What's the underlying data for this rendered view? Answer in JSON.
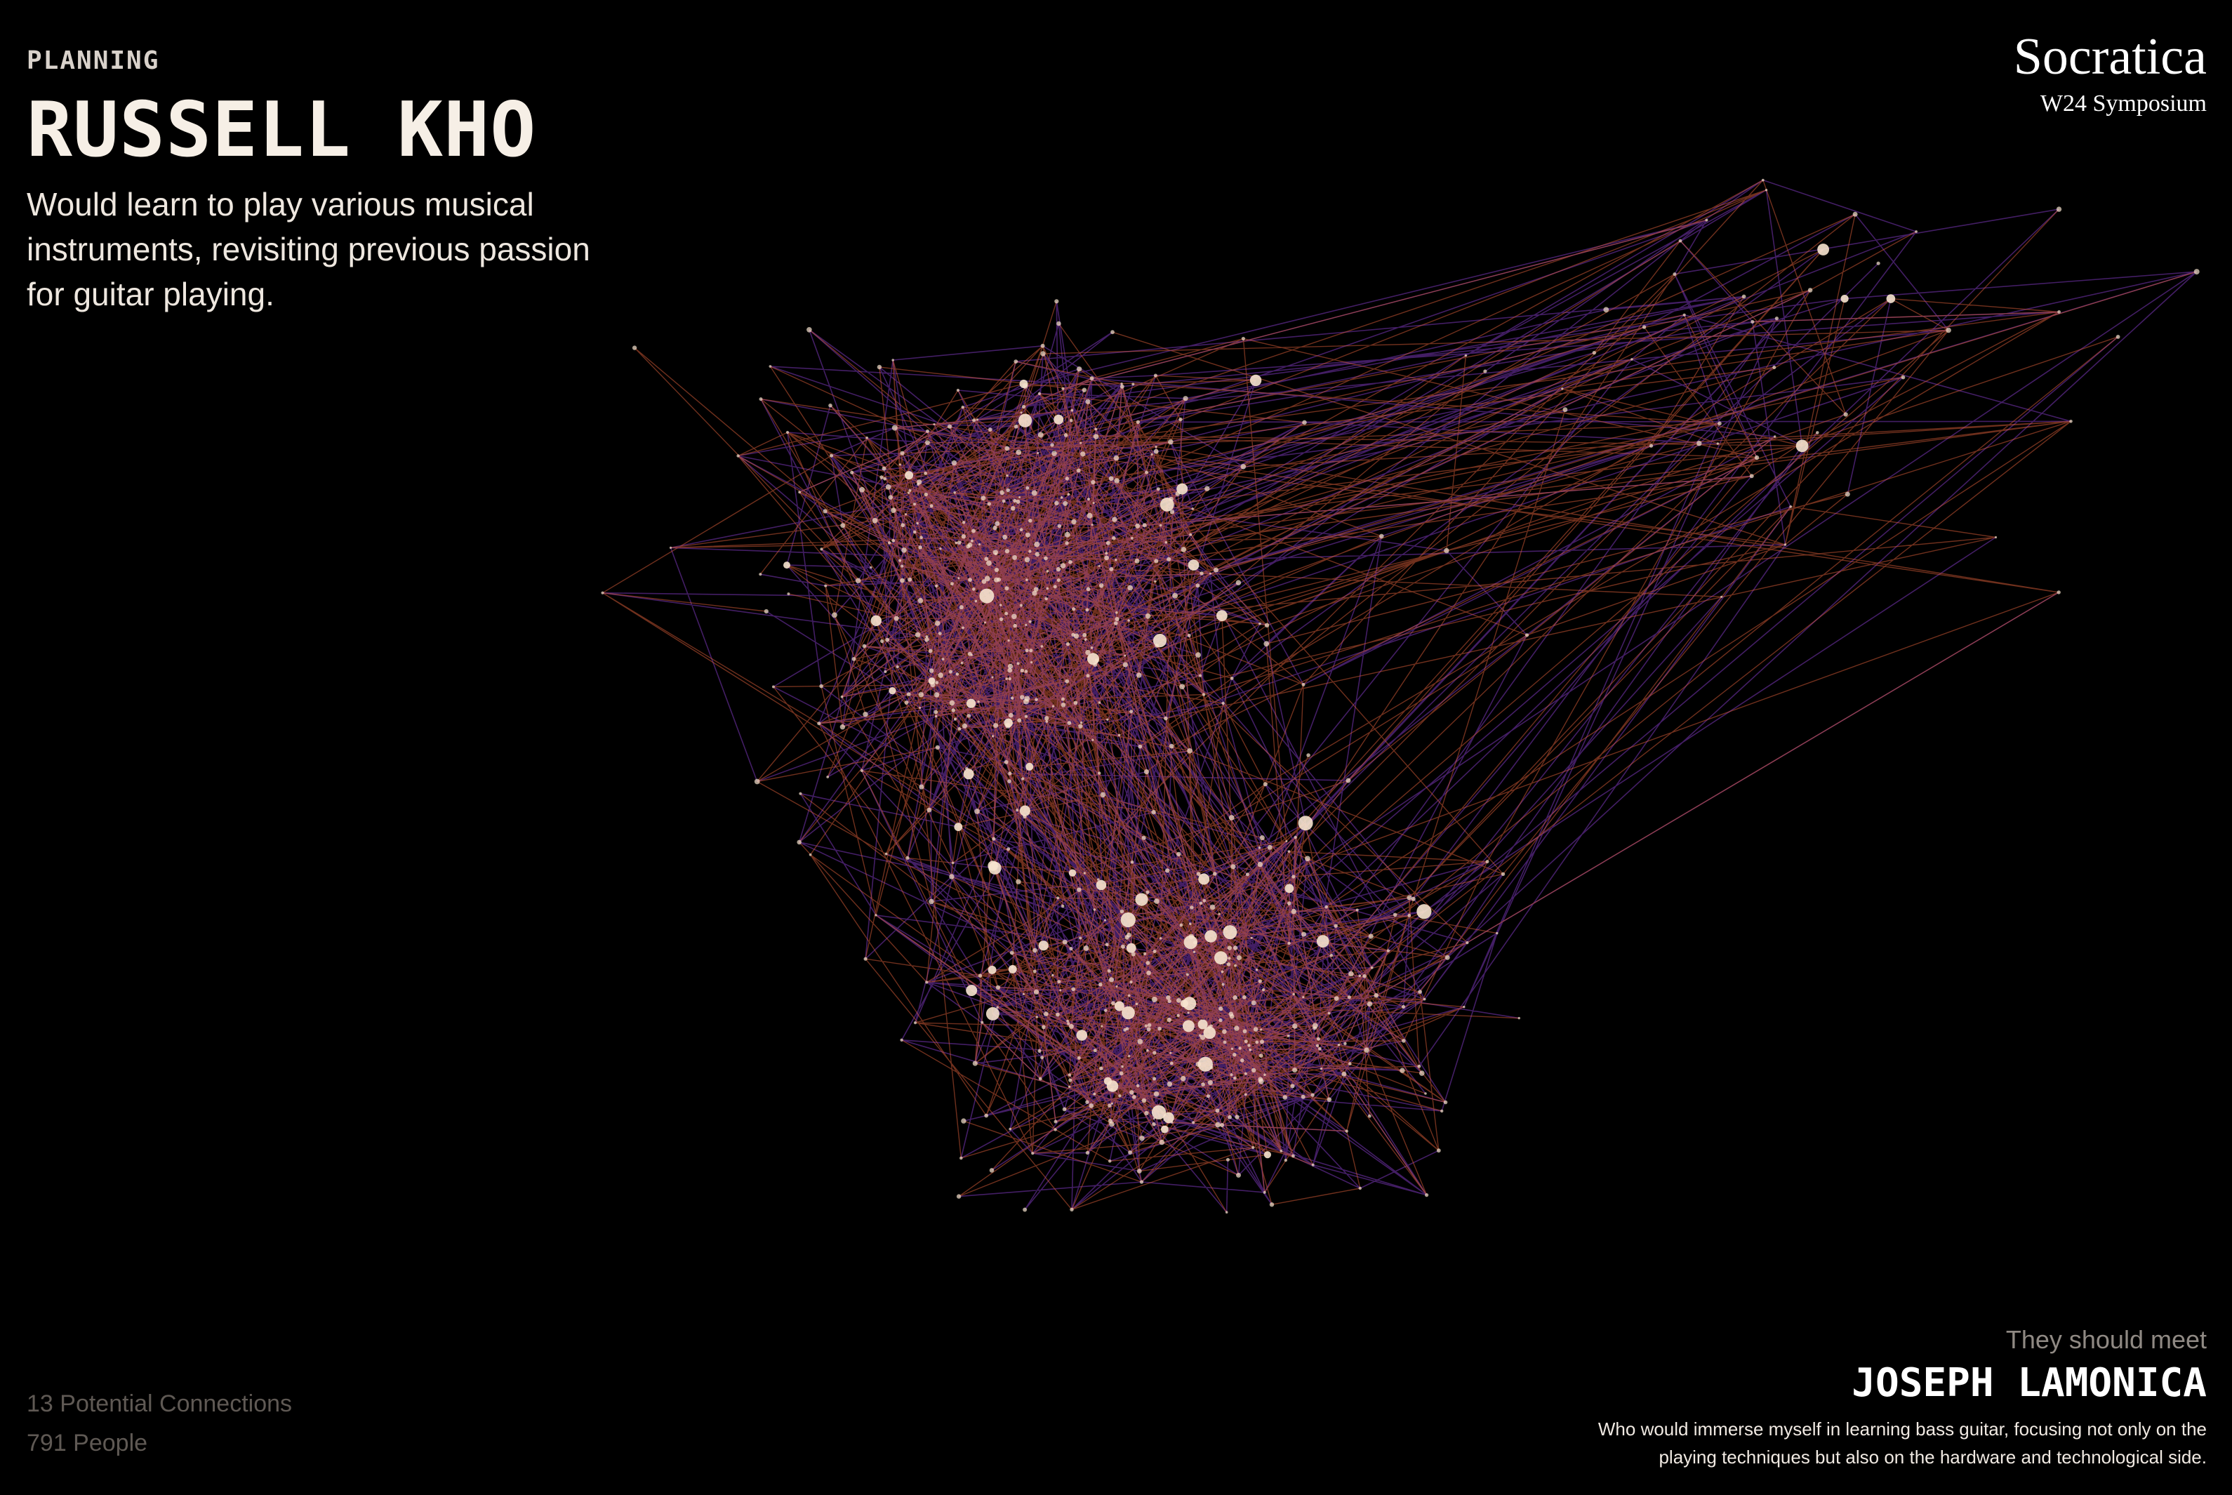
{
  "focus_person": {
    "category": "PLANNING",
    "name": "RUSSELL KHO",
    "description": "Would learn to play various musical instruments, revisiting previous passion for guitar playing."
  },
  "brand": {
    "name": "Socratica",
    "event": "W24 Symposium"
  },
  "stats": {
    "connections": "13 Potential Connections",
    "people": "791 People"
  },
  "match": {
    "label": "They should meet",
    "name": "JOSEPH LAMONICA",
    "description": "Who would immerse myself in learning bass guitar, focusing not only on the playing techniques but also on the hardware and technological side."
  },
  "colors": {
    "background": "#000000",
    "edge_purple": "#7a36b8",
    "edge_orange": "#e0603a",
    "node": "#f7e4cf"
  },
  "network": {
    "node_count": 791
  }
}
